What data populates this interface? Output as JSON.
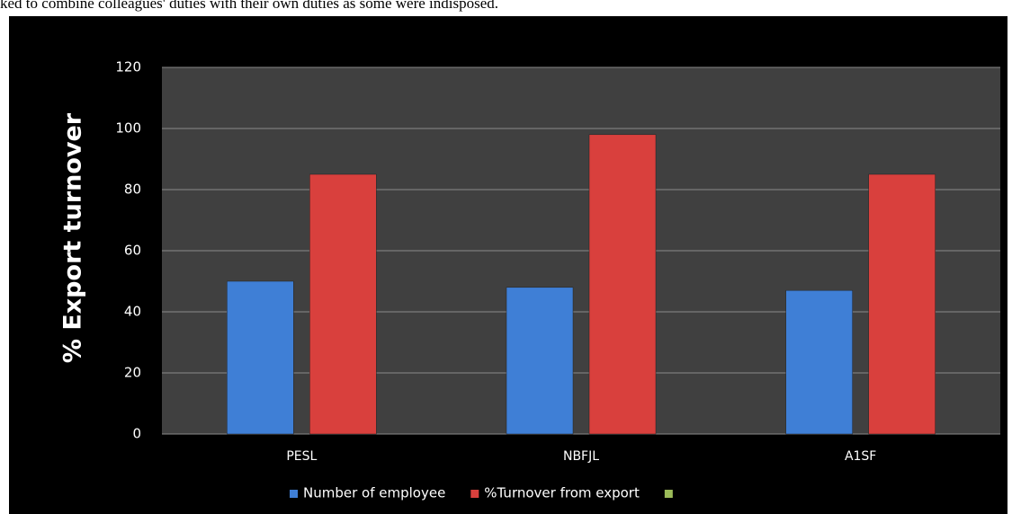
{
  "page_text": "ked to combine colleagues' duties with their own duties as some were indisposed.",
  "chart_data": {
    "type": "bar",
    "y_label": "% Export turnover",
    "categories": [
      "PESL",
      "NBFJL",
      "A1SF"
    ],
    "series": [
      {
        "name": "Number of employee",
        "color": "#3f7fd6",
        "values": [
          50,
          48,
          47
        ]
      },
      {
        "name": "%Turnover from export",
        "color": "#d9403d",
        "values": [
          85,
          98,
          85
        ]
      },
      {
        "color": "#9bbb59",
        "values": [
          null,
          null,
          null
        ]
      }
    ],
    "ylim": [
      0,
      120
    ],
    "yticks": [
      0,
      20,
      40,
      60,
      80,
      100,
      120
    ],
    "grid": true,
    "legend": "bottom"
  }
}
